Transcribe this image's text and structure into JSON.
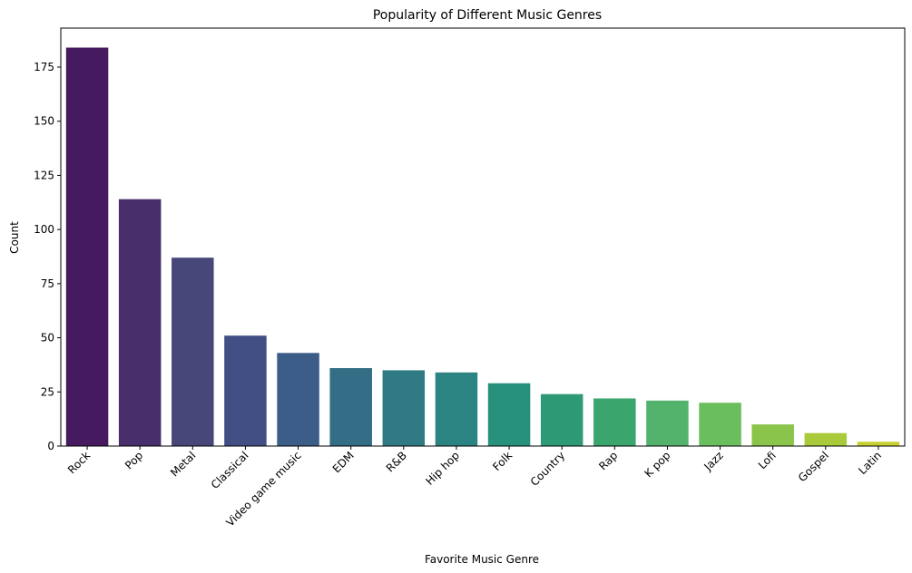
{
  "chart_data": {
    "type": "bar",
    "title": "Popularity of Different Music Genres",
    "xlabel": "Favorite Music Genre",
    "ylabel": "Count",
    "ylim": [
      0,
      193
    ],
    "yticks": [
      0,
      25,
      50,
      75,
      100,
      125,
      150,
      175
    ],
    "categories": [
      "Rock",
      "Pop",
      "Metal",
      "Classical",
      "Video game music",
      "EDM",
      "R&B",
      "Hip hop",
      "Folk",
      "Country",
      "Rap",
      "K pop",
      "Jazz",
      "Lofi",
      "Gospel",
      "Latin"
    ],
    "values": [
      184,
      114,
      87,
      51,
      43,
      36,
      35,
      34,
      29,
      24,
      22,
      21,
      20,
      10,
      6,
      2
    ],
    "colors": [
      "#461a5e",
      "#482f6b",
      "#48477a",
      "#414f84",
      "#3b5d87",
      "#346d86",
      "#307a84",
      "#2b8481",
      "#27917c",
      "#2d9a75",
      "#3aa56d",
      "#53b26c",
      "#6bbe5e",
      "#8ac44a",
      "#a9ca3a",
      "#c7cf32"
    ],
    "grid": false,
    "legend": false
  }
}
